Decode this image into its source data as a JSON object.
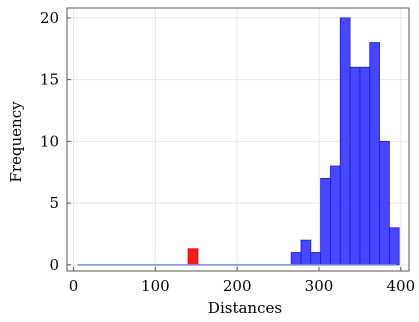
{
  "chart_data": {
    "type": "bar",
    "xlabel": "Distances",
    "ylabel": "Frequency",
    "xlim": [
      -8,
      410
    ],
    "ylim": [
      -0.5,
      20.8
    ],
    "xticks": [
      0,
      100,
      200,
      300,
      400
    ],
    "yticks": [
      0,
      5,
      10,
      15,
      20
    ],
    "grid": true,
    "bin_width": 12,
    "baseline_series": {
      "color": "#7a86e6",
      "x": [
        5,
        395
      ],
      "y": [
        0,
        0
      ]
    },
    "series": [
      {
        "color": "#ff0000",
        "edge_color": "#cc0000",
        "bins": [
          {
            "x": 140,
            "count": 1.3
          }
        ]
      },
      {
        "color": "#3333ff",
        "edge_color": "#1a1acc",
        "bins": [
          {
            "x": 266,
            "count": 1
          },
          {
            "x": 278,
            "count": 2
          },
          {
            "x": 290,
            "count": 1
          },
          {
            "x": 302,
            "count": 7
          },
          {
            "x": 314,
            "count": 8
          },
          {
            "x": 326,
            "count": 20
          },
          {
            "x": 338,
            "count": 16
          },
          {
            "x": 350,
            "count": 16
          },
          {
            "x": 362,
            "count": 18
          },
          {
            "x": 374,
            "count": 10
          },
          {
            "x": 386,
            "count": 3
          }
        ]
      }
    ]
  }
}
